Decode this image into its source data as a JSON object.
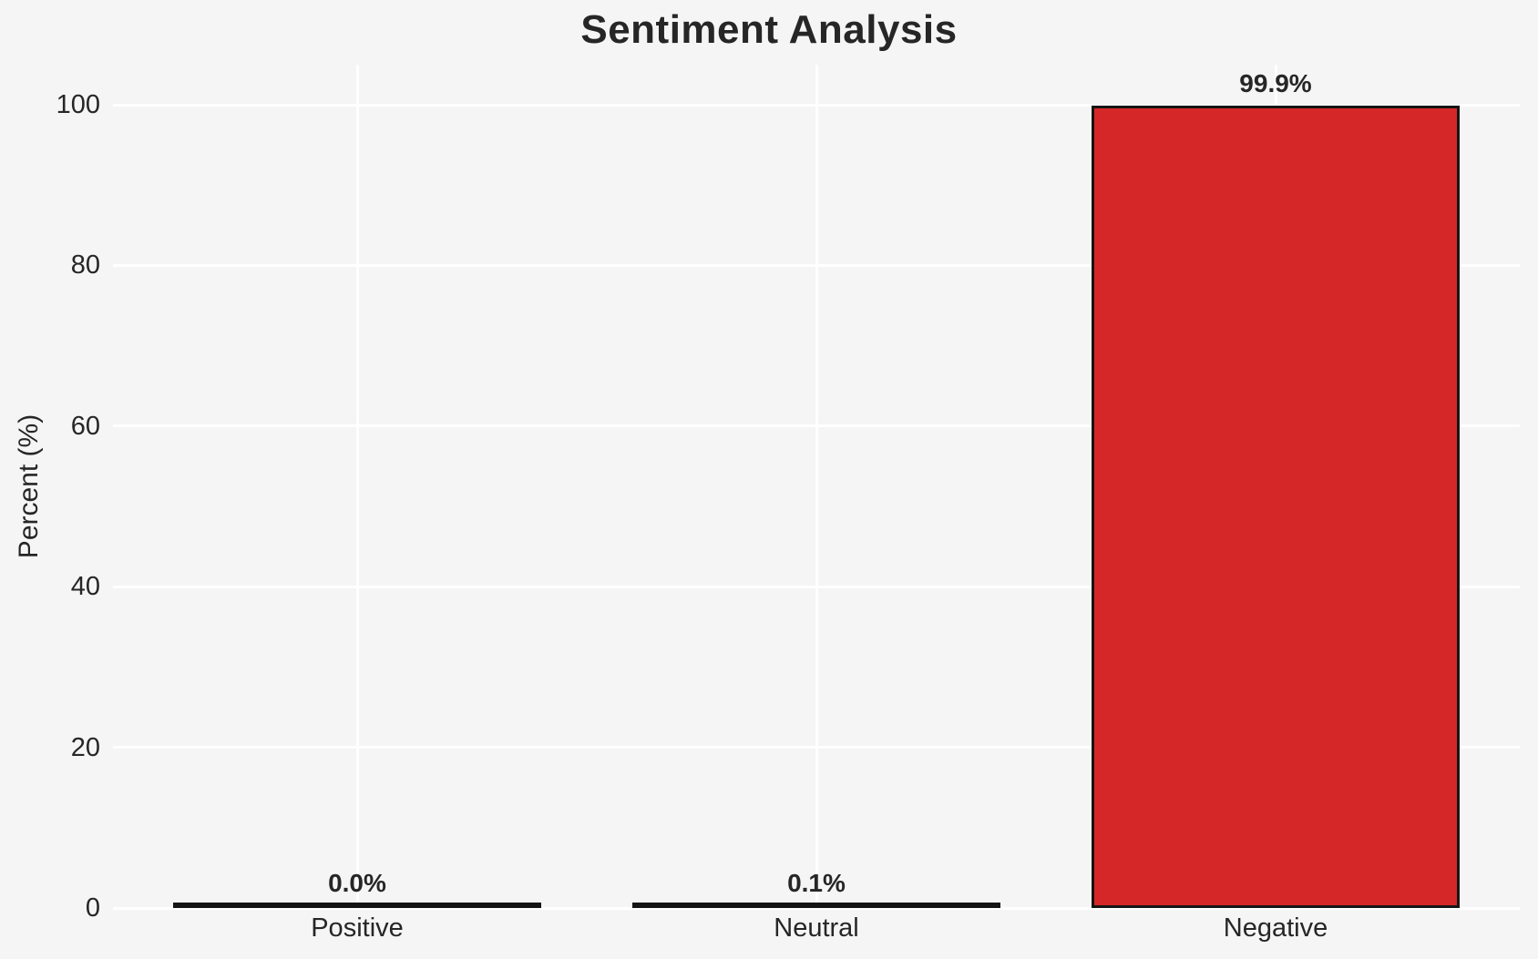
{
  "title": "Sentiment Analysis",
  "chart_data": {
    "type": "bar",
    "title": "Sentiment Analysis",
    "xlabel": "",
    "ylabel": "Percent (%)",
    "categories": [
      "Positive",
      "Neutral",
      "Negative"
    ],
    "values": [
      0.0,
      0.1,
      99.9
    ],
    "bar_labels": [
      "0.0%",
      "0.1%",
      "99.9%"
    ],
    "yticks": [
      0,
      20,
      40,
      60,
      80,
      100
    ],
    "ylim": [
      0,
      105
    ],
    "grid": true,
    "legend": false,
    "colors": {
      "background": "#f5f5f6",
      "gridline": "#ffffff",
      "text": "#262626",
      "bar_fills": [
        null,
        null,
        "#d62728"
      ],
      "bar_edge": "#151515"
    }
  }
}
